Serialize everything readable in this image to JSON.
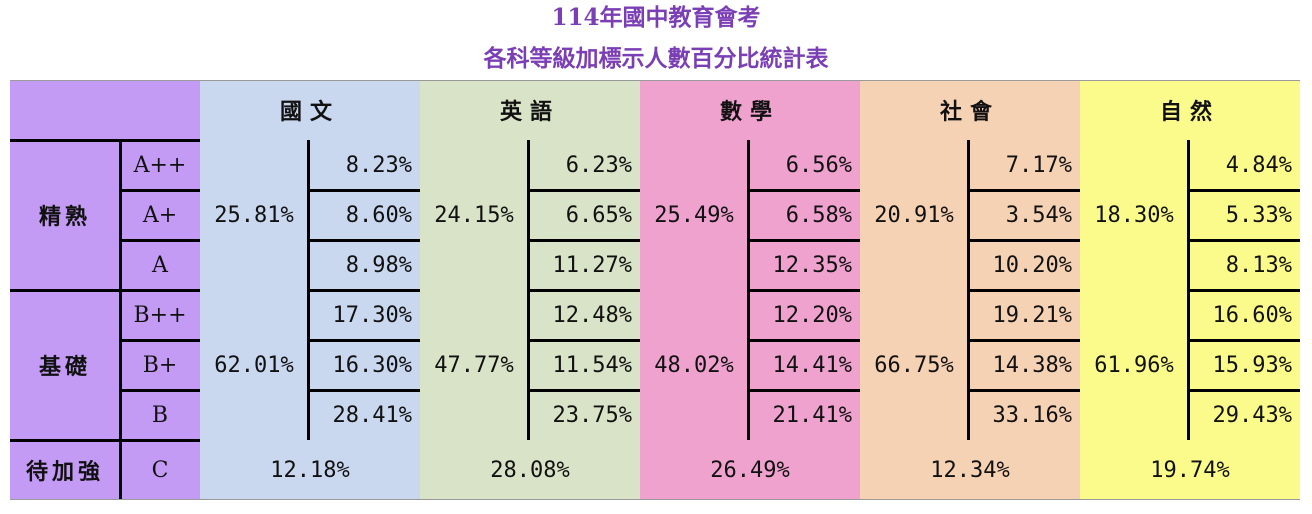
{
  "title_line1": "114年國中教育會考",
  "title_line2": "各科等級加標示人數百分比統計表",
  "colors": {
    "label": "#c39bf5",
    "chinese": "#c9d7ef",
    "english": "#d9e3c7",
    "math": "#f0a2cf",
    "social": "#f6d2b4",
    "science": "#fbfb8b",
    "title": "#7b3fb5"
  },
  "groups": {
    "proficient": "精熟",
    "basic": "基礎",
    "needs": "待加強"
  },
  "levels": [
    "A++",
    "A+",
    "A",
    "B++",
    "B+",
    "B",
    "C"
  ],
  "subjects": [
    {
      "name": "國文",
      "proficient_total": "25.81%",
      "proficient": [
        "8.23%",
        "8.60%",
        "8.98%"
      ],
      "basic_total": "62.01%",
      "basic": [
        "17.30%",
        "16.30%",
        "28.41%"
      ],
      "c": "12.18%"
    },
    {
      "name": "英語",
      "proficient_total": "24.15%",
      "proficient": [
        "6.23%",
        "6.65%",
        "11.27%"
      ],
      "basic_total": "47.77%",
      "basic": [
        "12.48%",
        "11.54%",
        "23.75%"
      ],
      "c": "28.08%"
    },
    {
      "name": "數學",
      "proficient_total": "25.49%",
      "proficient": [
        "6.56%",
        "6.58%",
        "12.35%"
      ],
      "basic_total": "48.02%",
      "basic": [
        "12.20%",
        "14.41%",
        "21.41%"
      ],
      "c": "26.49%"
    },
    {
      "name": "社會",
      "proficient_total": "20.91%",
      "proficient": [
        "7.17%",
        "3.54%",
        "10.20%"
      ],
      "basic_total": "66.75%",
      "basic": [
        "19.21%",
        "14.38%",
        "33.16%"
      ],
      "c": "12.34%"
    },
    {
      "name": "自然",
      "proficient_total": "18.30%",
      "proficient": [
        "4.84%",
        "5.33%",
        "8.13%"
      ],
      "basic_total": "61.96%",
      "basic": [
        "16.60%",
        "15.93%",
        "29.43%"
      ],
      "c": "19.74%"
    }
  ]
}
